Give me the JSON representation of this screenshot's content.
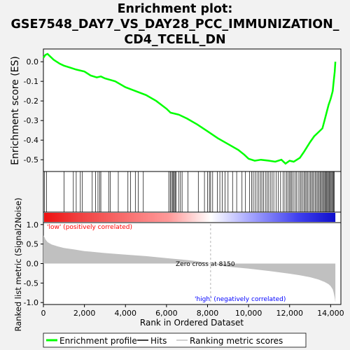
{
  "title": {
    "line1": "Enrichment plot:",
    "line2": "GSE7548_DAY7_VS_DAY28_PCC_IMMUNIZATION_",
    "line3": "CD4_TCELL_DN"
  },
  "colors": {
    "background": "#f2f2f2",
    "panel": "#ffffff",
    "es_line": "#00ff00",
    "hits": "#000000",
    "metric_fill": "#c0c0c0",
    "pos_band": "#ff0000",
    "neg_band": "#0000ff",
    "low_text": "#ff0000",
    "high_text": "#0000ff",
    "zero_line": "#a0a0a0"
  },
  "chart_data": [
    {
      "type": "line",
      "panel": "enrichment",
      "ylabel": "Enrichment score (ES)",
      "ylim": [
        -0.56,
        0.065
      ],
      "yticks": [
        0.0,
        -0.1,
        -0.2,
        -0.3,
        -0.4,
        -0.5
      ],
      "ytick_labels": [
        "0.0",
        "-0.1",
        "-0.2",
        "-0.3",
        "-0.4",
        "-0.5"
      ],
      "xlim": [
        0,
        14500
      ],
      "grid": false,
      "series": [
        {
          "name": "Enrichment profile",
          "x": [
            0,
            100,
            200,
            300,
            500,
            800,
            1000,
            1300,
            1600,
            2000,
            2300,
            2600,
            2800,
            3000,
            3500,
            4000,
            4500,
            5000,
            5500,
            6000,
            6200,
            6400,
            6600,
            7000,
            7500,
            8000,
            8500,
            9000,
            9500,
            9800,
            10000,
            10300,
            10600,
            11000,
            11300,
            11600,
            11800,
            12000,
            12200,
            12500,
            12700,
            13000,
            13200,
            13400,
            13600,
            13700,
            13800,
            13900,
            14000,
            14100,
            14150,
            14200,
            14230
          ],
          "y": [
            0.02,
            0.035,
            0.04,
            0.03,
            0.01,
            -0.01,
            -0.02,
            -0.03,
            -0.04,
            -0.05,
            -0.07,
            -0.08,
            -0.075,
            -0.085,
            -0.1,
            -0.13,
            -0.15,
            -0.17,
            -0.2,
            -0.24,
            -0.26,
            -0.265,
            -0.27,
            -0.29,
            -0.32,
            -0.355,
            -0.39,
            -0.42,
            -0.45,
            -0.475,
            -0.495,
            -0.505,
            -0.5,
            -0.505,
            -0.51,
            -0.5,
            -0.52,
            -0.505,
            -0.51,
            -0.49,
            -0.46,
            -0.41,
            -0.38,
            -0.36,
            -0.34,
            -0.3,
            -0.26,
            -0.22,
            -0.19,
            -0.15,
            -0.1,
            -0.05,
            0.0
          ]
        }
      ]
    },
    {
      "type": "heatmap",
      "panel": "hits",
      "legend_label": "Hits",
      "hit_positions": [
        60,
        150,
        1010,
        1460,
        1600,
        1800,
        1900,
        2380,
        2540,
        2660,
        2740,
        2800,
        3180,
        3260,
        3650,
        4120,
        4250,
        4480,
        4620,
        4870,
        6110,
        6180,
        6220,
        6290,
        6330,
        6380,
        6420,
        6470,
        6590,
        6680,
        6760,
        7040,
        7550,
        7850,
        8000,
        8090,
        8150,
        8250,
        8480,
        8600,
        8720,
        8850,
        9000,
        9220,
        9420,
        9680,
        9850,
        10050,
        10150,
        10230,
        10320,
        10410,
        10500,
        10580,
        10650,
        10730,
        10820,
        10900,
        10980,
        11060,
        11150,
        11230,
        11340,
        11450,
        11560,
        11680,
        11770,
        11860,
        11930,
        12000,
        12050,
        12110,
        12180,
        12260,
        12340,
        12420,
        12500,
        12560,
        12630,
        12700,
        12760,
        12820,
        12880,
        12950,
        13010,
        13070,
        13130,
        13190,
        13250,
        13310,
        13370,
        13430,
        13480,
        13530,
        13580,
        13630,
        13680,
        13720,
        13770,
        13810,
        13850,
        13890,
        13930,
        13980,
        14020,
        14060,
        14100,
        14140,
        14180
      ]
    },
    {
      "type": "area",
      "panel": "ranked_list_metric",
      "ylabel": "Ranked list metric (Signal2Noise)",
      "xlabel": "Rank in Ordered Dataset",
      "ylim": [
        -1.05,
        1.05
      ],
      "yticks": [
        1.0,
        0.5,
        0.0,
        -0.5,
        -1.0
      ],
      "ytick_labels": [
        "1.0",
        "0.5",
        "0.0",
        "-0.5",
        "-1.0"
      ],
      "xlim": [
        0,
        14500
      ],
      "xticks": [
        0,
        2000,
        4000,
        6000,
        8000,
        10000,
        12000,
        14000
      ],
      "xtick_labels": [
        "0",
        "2,000",
        "4,000",
        "6,000",
        "8,000",
        "10,000",
        "12,000",
        "14,000"
      ],
      "series": [
        {
          "name": "Ranking metric scores",
          "x": [
            0,
            50,
            100,
            200,
            400,
            700,
            1000,
            1500,
            2000,
            3000,
            4000,
            5000,
            6000,
            7000,
            7500,
            8000,
            8150,
            8500,
            9000,
            10000,
            11000,
            12000,
            12500,
            13000,
            13400,
            13700,
            13900,
            14000,
            14100,
            14150,
            14200,
            14230
          ],
          "y": [
            0.72,
            0.68,
            0.62,
            0.55,
            0.49,
            0.44,
            0.4,
            0.36,
            0.32,
            0.27,
            0.23,
            0.19,
            0.14,
            0.09,
            0.06,
            0.02,
            0.0,
            -0.04,
            -0.08,
            -0.13,
            -0.19,
            -0.26,
            -0.3,
            -0.35,
            -0.41,
            -0.47,
            -0.53,
            -0.58,
            -0.66,
            -0.75,
            -0.88,
            -1.0
          ]
        }
      ],
      "zero_cross": 8150,
      "annotations": {
        "low": "'low' (positively correlated)",
        "high": "'high' (negatively correlated)",
        "zero": "Zero cross at 8150"
      }
    }
  ],
  "legend": {
    "items": [
      {
        "label": "Enrichment profile",
        "color": "#00ff00"
      },
      {
        "label": "Hits",
        "color": "#000000"
      },
      {
        "label": "Ranking metric scores",
        "color": "#c0c0c0"
      }
    ]
  }
}
